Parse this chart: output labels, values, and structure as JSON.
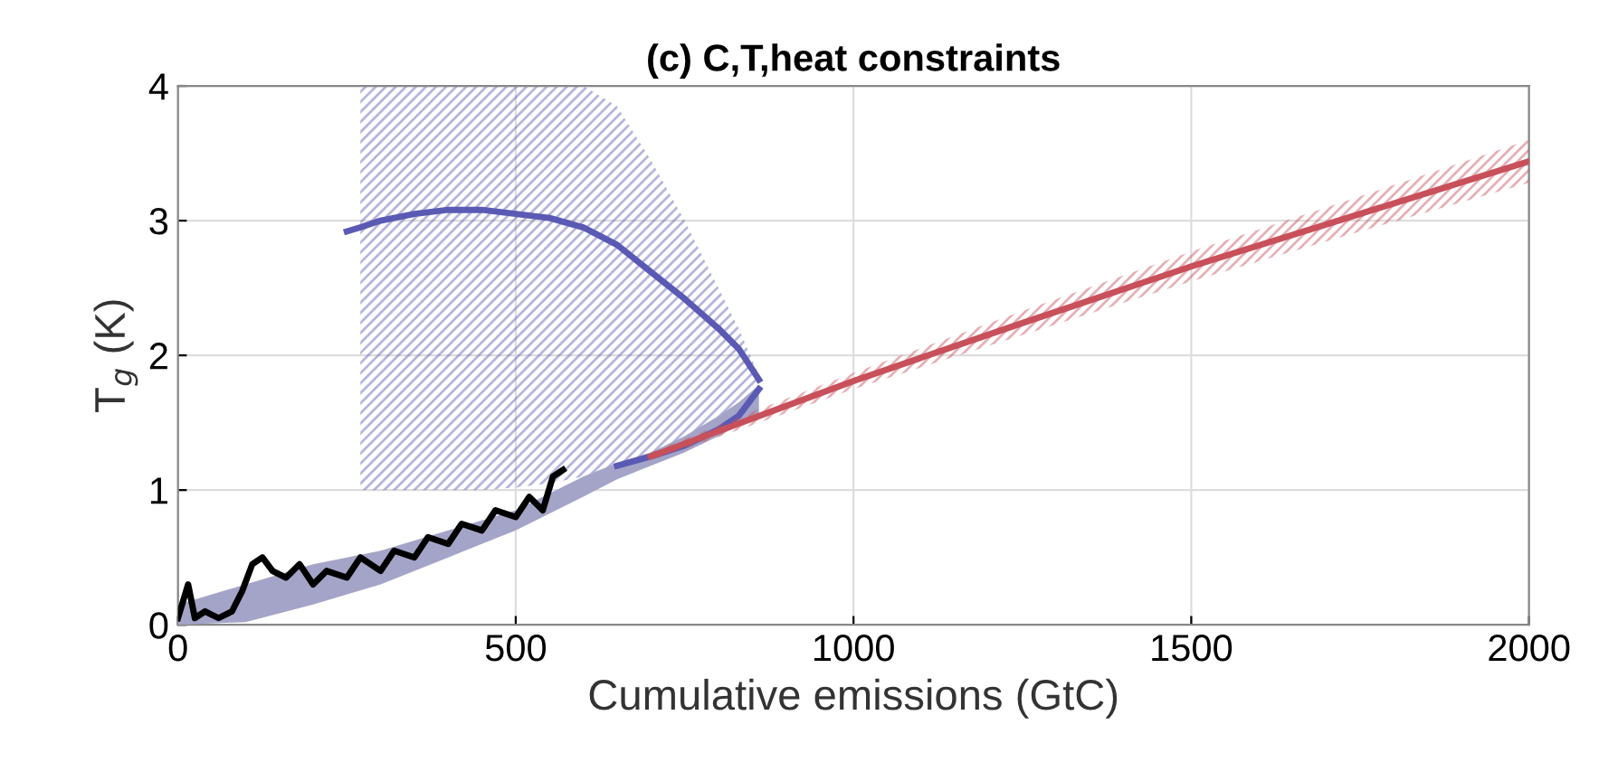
{
  "chart_data": {
    "type": "line",
    "title": "(c) C,T,heat constraints",
    "xlabel": "Cumulative emissions (GtC)",
    "ylabel": "T$_{g}$ (K)",
    "xlim": [
      0,
      2000
    ],
    "ylim": [
      0,
      4
    ],
    "xticks": [
      0,
      500,
      1000,
      1500,
      2000
    ],
    "yticks": [
      0,
      1,
      2,
      3,
      4
    ],
    "grid": true,
    "line_style": "solid",
    "marker": "none",
    "series": [
      {
        "color": "#5a5ab4",
        "x": [
          250,
          270,
          300,
          350,
          400,
          450,
          500,
          550,
          600,
          650,
          700,
          750,
          800,
          830,
          860
        ],
        "values": [
          2.92,
          2.95,
          3.0,
          3.05,
          3.08,
          3.08,
          3.05,
          3.02,
          2.95,
          2.82,
          2.62,
          2.42,
          2.2,
          2.05,
          1.82
        ],
        "lower": [
          null,
          1.0,
          1.0,
          1.0,
          1.0,
          1.0,
          1.02,
          1.05,
          1.1,
          1.15,
          1.22,
          1.3,
          1.42,
          1.55,
          1.75
        ],
        "upper": [
          null,
          4.0,
          4.0,
          4.0,
          4.0,
          4.0,
          4.0,
          4.0,
          4.0,
          3.85,
          3.45,
          3.0,
          2.5,
          2.2,
          1.85
        ]
      },
      {
        "color": "#5a5ab4",
        "x": [
          0,
          100,
          200,
          300,
          400,
          500,
          600,
          650,
          700,
          750,
          800,
          830,
          860
        ],
        "values": [
          null,
          null,
          null,
          null,
          null,
          null,
          null,
          1.18,
          1.25,
          1.33,
          1.45,
          1.55,
          1.75
        ],
        "lower": [
          0.0,
          0.02,
          0.15,
          0.3,
          0.5,
          0.7,
          0.95,
          1.08,
          1.18,
          1.28,
          1.4,
          1.48,
          1.55
        ],
        "upper": [
          0.15,
          0.3,
          0.45,
          0.55,
          0.7,
          0.85,
          1.1,
          1.2,
          1.28,
          1.4,
          1.55,
          1.65,
          1.78
        ]
      },
      {
        "color": "#c8505a",
        "x": [
          700,
          860,
          1000,
          1250,
          1500,
          1750,
          2000
        ],
        "values": [
          1.25,
          1.55,
          1.81,
          2.24,
          2.66,
          3.05,
          3.44
        ],
        "lower": [
          1.22,
          1.5,
          1.75,
          2.15,
          2.55,
          2.92,
          3.28
        ],
        "upper": [
          1.28,
          1.6,
          1.87,
          2.33,
          2.77,
          3.18,
          3.6
        ]
      },
      {
        "color": "#000000",
        "x": [
          0,
          15,
          25,
          40,
          60,
          80,
          95,
          110,
          125,
          140,
          160,
          180,
          200,
          220,
          250,
          270,
          300,
          320,
          350,
          370,
          400,
          420,
          450,
          470,
          500,
          520,
          540,
          555,
          570
        ],
        "values": [
          0.05,
          0.3,
          0.05,
          0.1,
          0.05,
          0.1,
          0.25,
          0.45,
          0.5,
          0.4,
          0.35,
          0.45,
          0.3,
          0.4,
          0.35,
          0.5,
          0.4,
          0.55,
          0.5,
          0.65,
          0.6,
          0.75,
          0.7,
          0.85,
          0.8,
          0.95,
          0.85,
          1.1,
          1.15
        ]
      }
    ]
  }
}
